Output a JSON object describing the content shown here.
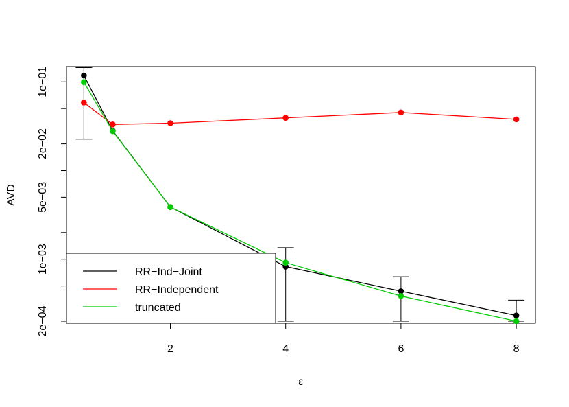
{
  "chart_data": {
    "type": "line",
    "xlabel": "ε",
    "ylabel": "AVD",
    "y_scale": "log",
    "xlim": [
      0.2,
      8.3
    ],
    "ylim": [
      0.00019,
      0.145
    ],
    "x_ticks": [
      2,
      4,
      6,
      8
    ],
    "x_tick_labels": [
      "2",
      "4",
      "6",
      "8"
    ],
    "y_ticks": [
      0.1,
      0.05,
      0.02,
      0.01,
      0.005,
      0.002,
      0.001,
      0.0005,
      0.0002
    ],
    "y_tick_labels": [
      "1e−01",
      "",
      "2e−02",
      "",
      "5e−03",
      "",
      "1e−03",
      "",
      "2e−04"
    ],
    "grid": false,
    "legend_position": "bottom-left",
    "series": [
      {
        "name": "RR−Ind−Joint",
        "color": "#000000",
        "x": [
          0.5,
          1,
          2,
          4,
          6,
          8
        ],
        "y": [
          0.118,
          0.0281,
          0.00388,
          0.000826,
          0.000436,
          0.000232
        ],
        "error_bars": [
          {
            "x": 0.5,
            "low": 0.0226,
            "high": 0.145
          },
          {
            "x": 4,
            "low": 0.0002,
            "high": 0.00135
          },
          {
            "x": 6,
            "low": 0.0002,
            "high": 0.000635
          },
          {
            "x": 8,
            "low": 0.0002,
            "high": 0.000345
          }
        ]
      },
      {
        "name": "RR−Independent",
        "color": "#ff0000",
        "x": [
          0.5,
          1,
          2,
          4,
          6,
          8
        ],
        "y": [
          0.0584,
          0.0331,
          0.0342,
          0.0393,
          0.0452,
          0.0378
        ]
      },
      {
        "name": "truncated",
        "color": "#00cd00",
        "x": [
          0.5,
          1,
          2,
          4,
          6,
          8
        ],
        "y": [
          0.0993,
          0.0278,
          0.00388,
          0.000915,
          0.000384,
          0.0002
        ]
      }
    ]
  }
}
